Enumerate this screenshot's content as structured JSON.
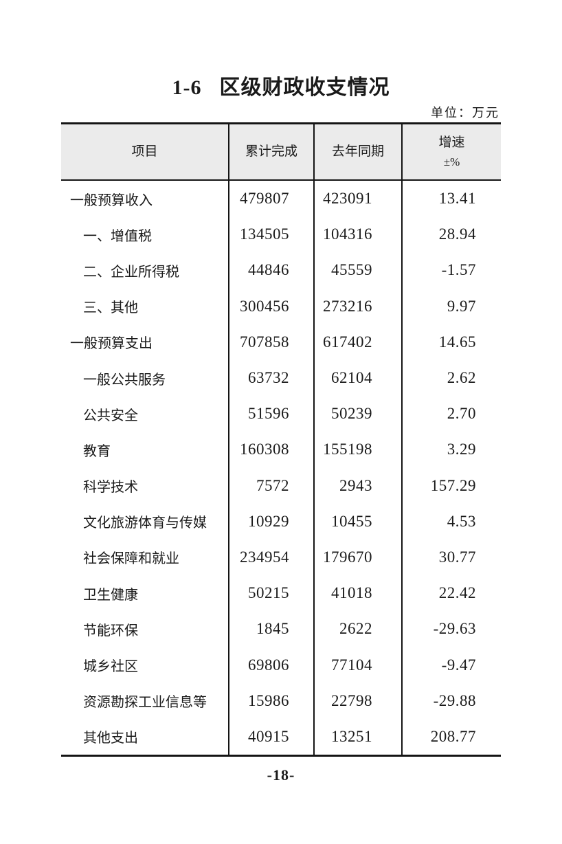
{
  "header": {
    "table_number": "1-6",
    "title": "区级财政收支情况",
    "unit_label": "单位：万元"
  },
  "table": {
    "columns": [
      "项目",
      "累计完成",
      "去年同期",
      "增速"
    ],
    "growth_unit": "±%",
    "rows": [
      {
        "label": "一般预算收入",
        "indent": 0,
        "cumulative": "479807",
        "last_year": "423091",
        "growth": "13.41"
      },
      {
        "label": "一、增值税",
        "indent": 1,
        "cumulative": "134505",
        "last_year": "104316",
        "growth": "28.94"
      },
      {
        "label": "二、企业所得税",
        "indent": 1,
        "cumulative": "44846",
        "last_year": "45559",
        "growth": "-1.57"
      },
      {
        "label": "三、其他",
        "indent": 1,
        "cumulative": "300456",
        "last_year": "273216",
        "growth": "9.97"
      },
      {
        "label": "一般预算支出",
        "indent": 0,
        "cumulative": "707858",
        "last_year": "617402",
        "growth": "14.65"
      },
      {
        "label": "一般公共服务",
        "indent": 1,
        "cumulative": "63732",
        "last_year": "62104",
        "growth": "2.62"
      },
      {
        "label": "公共安全",
        "indent": 1,
        "cumulative": "51596",
        "last_year": "50239",
        "growth": "2.70"
      },
      {
        "label": "教育",
        "indent": 1,
        "cumulative": "160308",
        "last_year": "155198",
        "growth": "3.29"
      },
      {
        "label": "科学技术",
        "indent": 1,
        "cumulative": "7572",
        "last_year": "2943",
        "growth": "157.29"
      },
      {
        "label": "文化旅游体育与传媒",
        "indent": 1,
        "cumulative": "10929",
        "last_year": "10455",
        "growth": "4.53"
      },
      {
        "label": "社会保障和就业",
        "indent": 1,
        "cumulative": "234954",
        "last_year": "179670",
        "growth": "30.77"
      },
      {
        "label": "卫生健康",
        "indent": 1,
        "cumulative": "50215",
        "last_year": "41018",
        "growth": "22.42"
      },
      {
        "label": "节能环保",
        "indent": 1,
        "cumulative": "1845",
        "last_year": "2622",
        "growth": "-29.63"
      },
      {
        "label": "城乡社区",
        "indent": 1,
        "cumulative": "69806",
        "last_year": "77104",
        "growth": "-9.47"
      },
      {
        "label": "资源勘探工业信息等",
        "indent": 1,
        "cumulative": "15986",
        "last_year": "22798",
        "growth": "-29.88"
      },
      {
        "label": "其他支出",
        "indent": 1,
        "cumulative": "40915",
        "last_year": "13251",
        "growth": "208.77"
      }
    ]
  },
  "footer": {
    "page_number": "-18-"
  },
  "colors": {
    "header_bg": "#ebebeb",
    "border": "#141414",
    "text": "#1a1a1a"
  }
}
